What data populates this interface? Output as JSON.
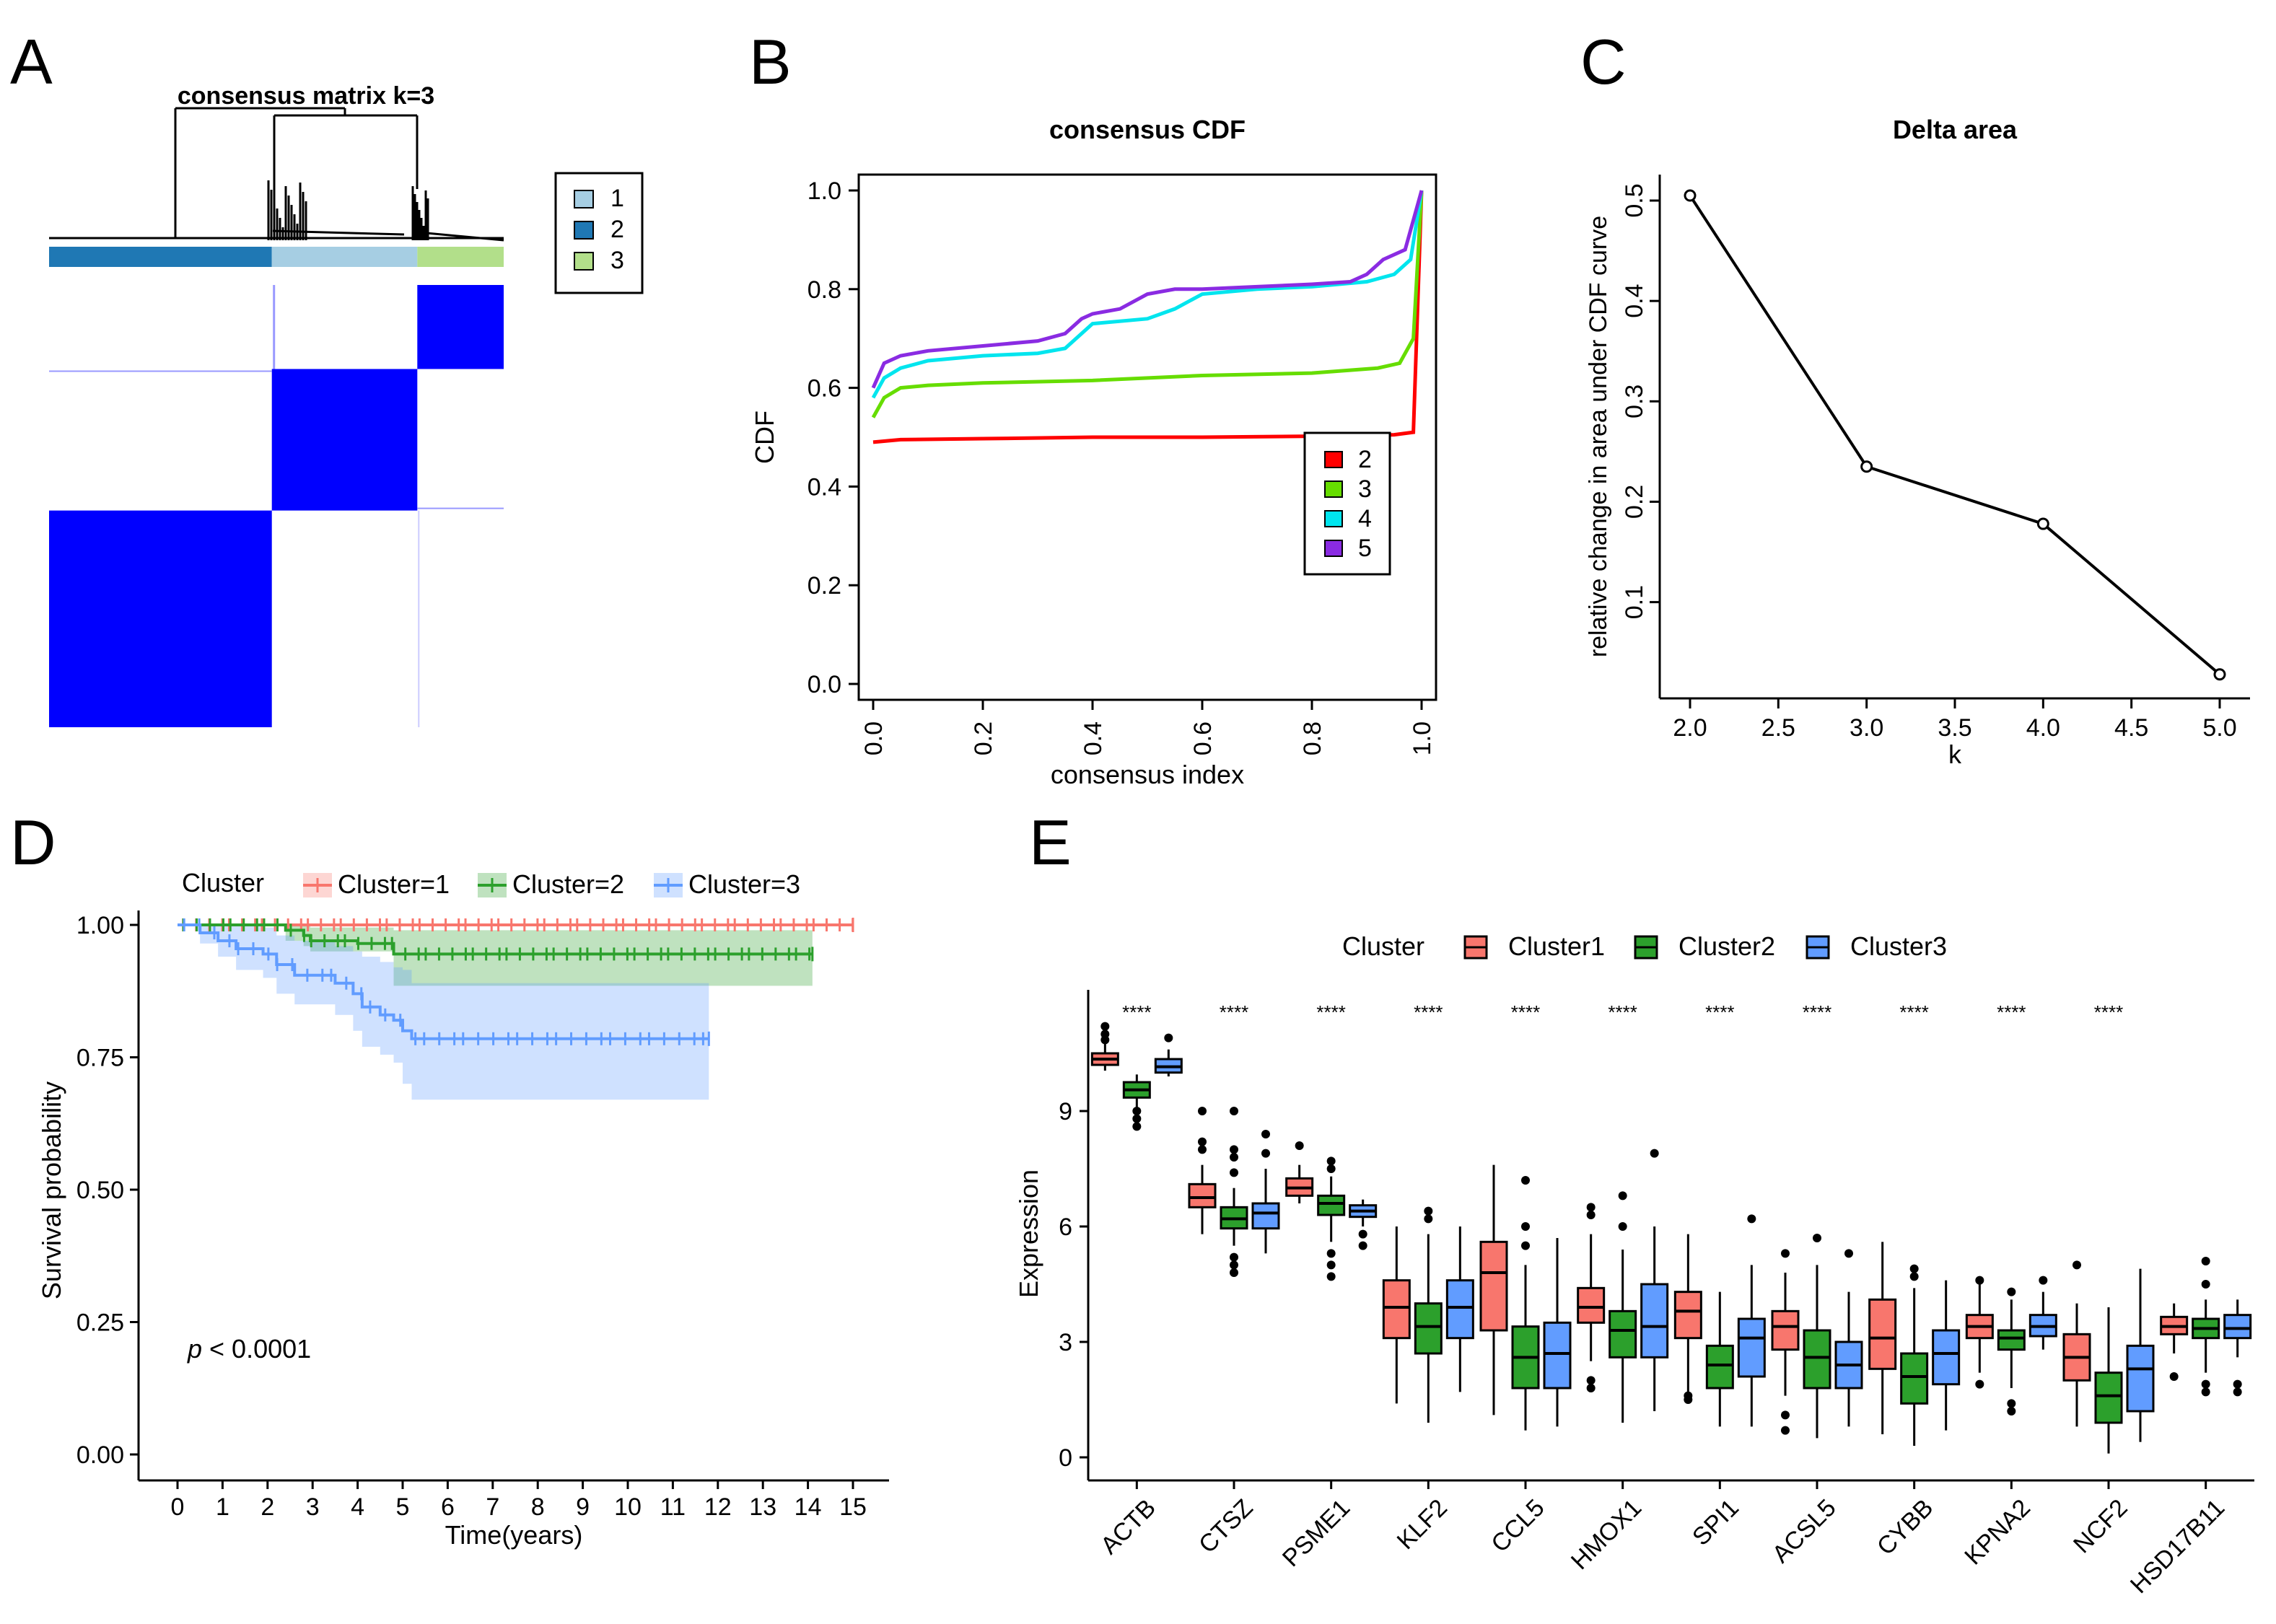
{
  "panels": {
    "A": {
      "letter": "A"
    },
    "B": {
      "letter": "B"
    },
    "C": {
      "letter": "C"
    },
    "D": {
      "letter": "D"
    },
    "E": {
      "letter": "E"
    }
  },
  "chart_data": [
    {
      "id": "A",
      "type": "heatmap",
      "title": "consensus matrix k=3",
      "legend": [
        {
          "label": "1",
          "color": "#a6cee3"
        },
        {
          "label": "2",
          "color": "#1f78b4"
        },
        {
          "label": "3",
          "color": "#b2df8a"
        }
      ],
      "cluster_order": [
        "2",
        "1",
        "3"
      ],
      "cluster_fraction": [
        0.49,
        0.32,
        0.19
      ],
      "block_color": "#0000ff"
    },
    {
      "id": "B",
      "type": "line",
      "title": "consensus CDF",
      "xlabel": "consensus index",
      "ylabel": "CDF",
      "xlim": [
        0,
        1
      ],
      "ylim": [
        0,
        1
      ],
      "xticks": [
        "0.0",
        "0.2",
        "0.4",
        "0.6",
        "0.8",
        "1.0"
      ],
      "yticks": [
        "0.0",
        "0.2",
        "0.4",
        "0.6",
        "0.8",
        "1.0"
      ],
      "legend_title": "",
      "series": [
        {
          "name": "2",
          "color": "#ff0000",
          "x": [
            0,
            0.05,
            0.2,
            0.4,
            0.6,
            0.8,
            0.95,
            0.985,
            1.0
          ],
          "y": [
            0.49,
            0.495,
            0.497,
            0.5,
            0.5,
            0.502,
            0.505,
            0.51,
            1.0
          ]
        },
        {
          "name": "3",
          "color": "#66dd00",
          "x": [
            0,
            0.02,
            0.05,
            0.1,
            0.2,
            0.4,
            0.6,
            0.8,
            0.92,
            0.96,
            0.985,
            1.0
          ],
          "y": [
            0.54,
            0.58,
            0.6,
            0.605,
            0.61,
            0.615,
            0.625,
            0.63,
            0.64,
            0.65,
            0.7,
            1.0
          ]
        },
        {
          "name": "4",
          "color": "#00e5ee",
          "x": [
            0,
            0.02,
            0.05,
            0.1,
            0.2,
            0.3,
            0.35,
            0.38,
            0.4,
            0.5,
            0.55,
            0.6,
            0.7,
            0.8,
            0.9,
            0.95,
            0.98,
            1.0
          ],
          "y": [
            0.58,
            0.62,
            0.64,
            0.655,
            0.665,
            0.67,
            0.68,
            0.71,
            0.73,
            0.74,
            0.76,
            0.79,
            0.8,
            0.805,
            0.815,
            0.83,
            0.86,
            1.0
          ]
        },
        {
          "name": "5",
          "color": "#8a2be2",
          "x": [
            0,
            0.02,
            0.05,
            0.1,
            0.2,
            0.3,
            0.35,
            0.38,
            0.4,
            0.45,
            0.5,
            0.55,
            0.6,
            0.7,
            0.8,
            0.87,
            0.9,
            0.93,
            0.97,
            1.0
          ],
          "y": [
            0.6,
            0.65,
            0.665,
            0.675,
            0.685,
            0.695,
            0.71,
            0.74,
            0.75,
            0.76,
            0.79,
            0.8,
            0.8,
            0.805,
            0.81,
            0.815,
            0.83,
            0.86,
            0.88,
            1.0
          ]
        }
      ]
    },
    {
      "id": "C",
      "type": "line",
      "title": "Delta area",
      "xlabel": "k",
      "ylabel": "relative change in area under CDF curve",
      "xlim": [
        2,
        5
      ],
      "ylim": [
        0.03,
        0.5
      ],
      "xticks": [
        "2.0",
        "2.5",
        "3.0",
        "3.5",
        "4.0",
        "4.5",
        "5.0"
      ],
      "yticks": [
        "0.1",
        "0.2",
        "0.3",
        "0.4",
        "0.5"
      ],
      "x": [
        2,
        3,
        4,
        5
      ],
      "y": [
        0.505,
        0.235,
        0.178,
        0.028
      ]
    },
    {
      "id": "D",
      "type": "line",
      "subtype": "kaplan-meier",
      "xlabel": "Time(years)",
      "ylabel": "Survival probability",
      "xlim": [
        0,
        15
      ],
      "ylim": [
        0,
        1
      ],
      "xticks": [
        "0",
        "1",
        "2",
        "3",
        "4",
        "5",
        "6",
        "7",
        "8",
        "9",
        "10",
        "11",
        "12",
        "13",
        "14",
        "15"
      ],
      "yticks": [
        "0.00",
        "0.25",
        "0.50",
        "0.75",
        "1.00"
      ],
      "legend_title": "Cluster",
      "annotation_p": "p",
      "annotation_rest": " < 0.0001",
      "series": [
        {
          "name": "Cluster=1",
          "color": "#f8766d",
          "band": "#f8766d",
          "steps": [
            [
              0,
              1.0
            ],
            [
              15,
              1.0
            ]
          ],
          "ci": [],
          "end": 15
        },
        {
          "name": "Cluster=2",
          "color": "#2ca02c",
          "band": "#2ca02c",
          "steps": [
            [
              0,
              1.0
            ],
            [
              2.4,
              0.99
            ],
            [
              2.8,
              0.98
            ],
            [
              2.95,
              0.97
            ],
            [
              4.0,
              0.965
            ],
            [
              4.8,
              0.945
            ],
            [
              14.1,
              0.945
            ]
          ],
          "ci": [
            [
              0,
              1.0,
              1.0
            ],
            [
              2.4,
              0.97,
              1.0
            ],
            [
              2.8,
              0.96,
              1.0
            ],
            [
              2.95,
              0.95,
              0.995
            ],
            [
              4.8,
              0.885,
              0.99
            ],
            [
              14.1,
              0.885,
              0.99
            ]
          ],
          "end": 14.1
        },
        {
          "name": "Cluster=3",
          "color": "#619cff",
          "band": "#619cff",
          "steps": [
            [
              0,
              1.0
            ],
            [
              0.5,
              0.985
            ],
            [
              0.9,
              0.97
            ],
            [
              1.3,
              0.955
            ],
            [
              1.9,
              0.945
            ],
            [
              2.2,
              0.925
            ],
            [
              2.6,
              0.905
            ],
            [
              3.5,
              0.89
            ],
            [
              3.9,
              0.87
            ],
            [
              4.1,
              0.845
            ],
            [
              4.5,
              0.83
            ],
            [
              4.8,
              0.82
            ],
            [
              5.0,
              0.8
            ],
            [
              5.2,
              0.785
            ],
            [
              11.8,
              0.785
            ]
          ],
          "ci": [
            [
              0,
              1.0,
              1.0
            ],
            [
              0.5,
              0.965,
              1.0
            ],
            [
              0.9,
              0.94,
              1.0
            ],
            [
              1.3,
              0.915,
              1.0
            ],
            [
              1.9,
              0.9,
              0.995
            ],
            [
              2.2,
              0.87,
              0.98
            ],
            [
              2.6,
              0.85,
              0.97
            ],
            [
              3.5,
              0.83,
              0.96
            ],
            [
              3.9,
              0.8,
              0.95
            ],
            [
              4.1,
              0.77,
              0.94
            ],
            [
              4.5,
              0.755,
              0.93
            ],
            [
              4.8,
              0.74,
              0.92
            ],
            [
              5.0,
              0.7,
              0.915
            ],
            [
              5.2,
              0.67,
              0.89
            ],
            [
              11.8,
              0.67,
              0.89
            ]
          ],
          "end": 11.8
        }
      ]
    },
    {
      "id": "E",
      "type": "box",
      "xlabel": "",
      "ylabel": "Expression",
      "ylim": [
        0,
        11.5
      ],
      "yticks": [
        "0",
        "3",
        "6",
        "9"
      ],
      "legend_title": "Cluster",
      "significance": "****",
      "categories": [
        "ACTB",
        "CTSZ",
        "PSME1",
        "KLF2",
        "CCL5",
        "HMOX1",
        "SPI1",
        "ACSL5",
        "CYBB",
        "KPNA2",
        "NCF2",
        "HSD17B11"
      ],
      "significant": [
        true,
        true,
        true,
        true,
        true,
        true,
        true,
        true,
        true,
        true,
        true,
        false
      ],
      "series": [
        {
          "name": "Cluster1",
          "color": "#f8766d",
          "boxes": [
            {
              "min": 10.05,
              "q1": 10.2,
              "med": 10.35,
              "q3": 10.5,
              "max": 10.75,
              "out": [
                10.85,
                11.0,
                11.2
              ]
            },
            {
              "min": 5.8,
              "q1": 6.5,
              "med": 6.75,
              "q3": 7.1,
              "max": 7.6,
              "out": [
                8.0,
                8.2,
                9.0
              ]
            },
            {
              "min": 6.6,
              "q1": 6.8,
              "med": 7.0,
              "q3": 7.25,
              "max": 7.6,
              "out": [
                8.1
              ]
            },
            {
              "min": 1.4,
              "q1": 3.1,
              "med": 3.9,
              "q3": 4.6,
              "max": 6.0,
              "out": []
            },
            {
              "min": 1.1,
              "q1": 3.3,
              "med": 4.8,
              "q3": 5.6,
              "max": 7.6,
              "out": []
            },
            {
              "min": 2.5,
              "q1": 3.5,
              "med": 3.9,
              "q3": 4.4,
              "max": 5.8,
              "out": [
                1.8,
                2.0,
                6.3,
                6.5
              ]
            },
            {
              "min": 1.7,
              "q1": 3.1,
              "med": 3.8,
              "q3": 4.3,
              "max": 5.8,
              "out": [
                1.5,
                1.6
              ]
            },
            {
              "min": 1.6,
              "q1": 2.8,
              "med": 3.4,
              "q3": 3.8,
              "max": 4.8,
              "out": [
                0.7,
                1.1,
                5.3
              ]
            },
            {
              "min": 0.6,
              "q1": 2.3,
              "med": 3.1,
              "q3": 4.1,
              "max": 5.6,
              "out": []
            },
            {
              "min": 2.2,
              "q1": 3.1,
              "med": 3.4,
              "q3": 3.7,
              "max": 4.5,
              "out": [
                1.9,
                4.6
              ]
            },
            {
              "min": 0.8,
              "q1": 2.0,
              "med": 2.6,
              "q3": 3.2,
              "max": 4.0,
              "out": [
                5.0
              ]
            },
            {
              "min": 2.7,
              "q1": 3.2,
              "med": 3.4,
              "q3": 3.65,
              "max": 4.0,
              "out": [
                2.1
              ]
            }
          ]
        },
        {
          "name": "Cluster2",
          "color": "#2ca02c",
          "boxes": [
            {
              "min": 9.1,
              "q1": 9.35,
              "med": 9.55,
              "q3": 9.75,
              "max": 9.95,
              "out": [
                8.6,
                8.8,
                9.0
              ]
            },
            {
              "min": 5.5,
              "q1": 5.95,
              "med": 6.2,
              "q3": 6.5,
              "max": 7.0,
              "out": [
                4.8,
                5.0,
                5.2,
                7.4,
                7.8,
                8.0,
                9.0
              ]
            },
            {
              "min": 5.6,
              "q1": 6.3,
              "med": 6.6,
              "q3": 6.8,
              "max": 7.3,
              "out": [
                4.7,
                5.0,
                5.3,
                7.5,
                7.7
              ]
            },
            {
              "min": 0.9,
              "q1": 2.7,
              "med": 3.4,
              "q3": 4.0,
              "max": 5.8,
              "out": [
                6.2,
                6.4
              ]
            },
            {
              "min": 0.7,
              "q1": 1.8,
              "med": 2.6,
              "q3": 3.4,
              "max": 5.0,
              "out": [
                5.5,
                6.0,
                7.2
              ]
            },
            {
              "min": 0.9,
              "q1": 2.6,
              "med": 3.3,
              "q3": 3.8,
              "max": 5.4,
              "out": [
                6.0,
                6.8
              ]
            },
            {
              "min": 0.8,
              "q1": 1.8,
              "med": 2.4,
              "q3": 2.9,
              "max": 4.3,
              "out": []
            },
            {
              "min": 0.5,
              "q1": 1.8,
              "med": 2.6,
              "q3": 3.3,
              "max": 5.0,
              "out": [
                5.7
              ]
            },
            {
              "min": 0.3,
              "q1": 1.4,
              "med": 2.1,
              "q3": 2.7,
              "max": 4.4,
              "out": [
                4.7,
                4.9
              ]
            },
            {
              "min": 1.8,
              "q1": 2.8,
              "med": 3.1,
              "q3": 3.3,
              "max": 4.1,
              "out": [
                1.2,
                1.4,
                4.3
              ]
            },
            {
              "min": 0.1,
              "q1": 0.9,
              "med": 1.6,
              "q3": 2.2,
              "max": 3.9,
              "out": []
            },
            {
              "min": 2.2,
              "q1": 3.1,
              "med": 3.35,
              "q3": 3.6,
              "max": 4.1,
              "out": [
                1.7,
                1.9,
                4.5,
                5.1
              ]
            }
          ]
        },
        {
          "name": "Cluster3",
          "color": "#619cff",
          "boxes": [
            {
              "min": 9.9,
              "q1": 10.0,
              "med": 10.15,
              "q3": 10.35,
              "max": 10.6,
              "out": [
                10.9
              ]
            },
            {
              "min": 5.3,
              "q1": 5.95,
              "med": 6.35,
              "q3": 6.6,
              "max": 7.5,
              "out": [
                7.9,
                8.4
              ]
            },
            {
              "min": 6.0,
              "q1": 6.25,
              "med": 6.4,
              "q3": 6.55,
              "max": 6.7,
              "out": [
                5.5,
                5.8
              ]
            },
            {
              "min": 1.7,
              "q1": 3.1,
              "med": 3.9,
              "q3": 4.6,
              "max": 6.0,
              "out": []
            },
            {
              "min": 0.8,
              "q1": 1.8,
              "med": 2.7,
              "q3": 3.5,
              "max": 5.7,
              "out": []
            },
            {
              "min": 1.2,
              "q1": 2.6,
              "med": 3.4,
              "q3": 4.5,
              "max": 6.0,
              "out": [
                7.9
              ]
            },
            {
              "min": 0.8,
              "q1": 2.1,
              "med": 3.1,
              "q3": 3.6,
              "max": 5.0,
              "out": [
                6.2
              ]
            },
            {
              "min": 0.8,
              "q1": 1.8,
              "med": 2.4,
              "q3": 3.0,
              "max": 4.3,
              "out": [
                5.3
              ]
            },
            {
              "min": 0.7,
              "q1": 1.9,
              "med": 2.7,
              "q3": 3.3,
              "max": 4.6,
              "out": []
            },
            {
              "min": 2.8,
              "q1": 3.15,
              "med": 3.4,
              "q3": 3.7,
              "max": 4.3,
              "out": [
                4.6
              ]
            },
            {
              "min": 0.4,
              "q1": 1.2,
              "med": 2.3,
              "q3": 2.9,
              "max": 4.9,
              "out": []
            },
            {
              "min": 2.6,
              "q1": 3.1,
              "med": 3.35,
              "q3": 3.7,
              "max": 4.1,
              "out": [
                1.7,
                1.9
              ]
            }
          ]
        }
      ]
    }
  ]
}
